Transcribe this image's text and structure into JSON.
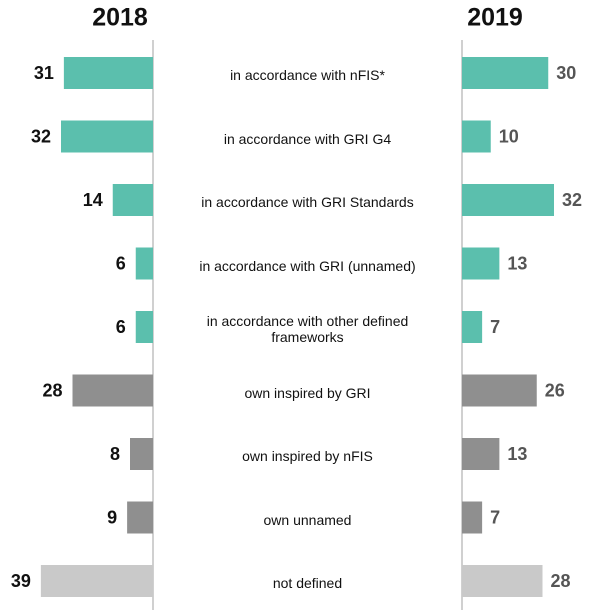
{
  "chart_data": {
    "type": "butterfly-bar",
    "categories": [
      "in accordance with nFIS*",
      "in accordance with GRI G4",
      "in accordance with GRI Standards",
      "in accordance with GRI (unnamed)",
      "in accordance with other defined frameworks",
      "own inspired by GRI",
      "own inspired by nFIS",
      "own unnamed",
      "not defined"
    ],
    "colors": [
      "#5bbfad",
      "#5bbfad",
      "#5bbfad",
      "#5bbfad",
      "#5bbfad",
      "#8f8f8f",
      "#8f8f8f",
      "#8f8f8f",
      "#c9c9c9"
    ],
    "series": [
      {
        "name": "2018",
        "side": "left",
        "label_color": "#111111",
        "values": [
          31,
          32,
          14,
          6,
          6,
          28,
          8,
          9,
          39
        ]
      },
      {
        "name": "2019",
        "side": "right",
        "label_color": "#555555",
        "values": [
          30,
          10,
          32,
          13,
          7,
          26,
          13,
          7,
          28
        ]
      }
    ],
    "xlim": [
      0,
      40
    ]
  }
}
